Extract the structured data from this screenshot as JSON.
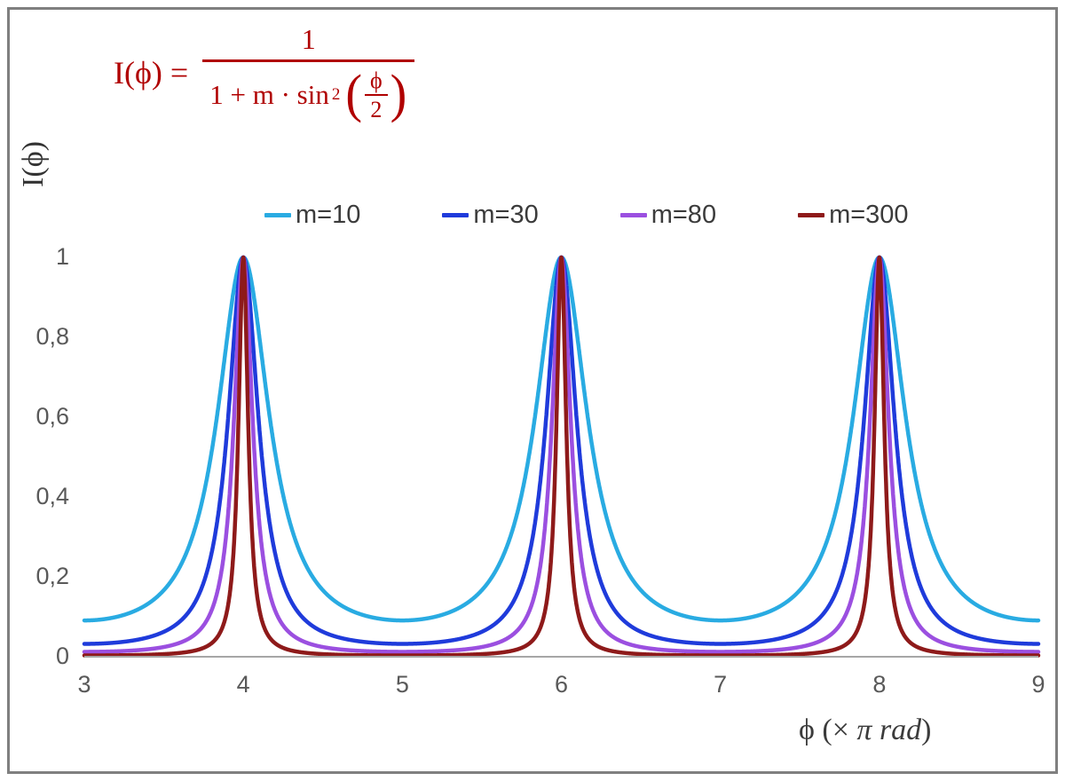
{
  "window": {
    "background": "#ffffff",
    "frame_border_color": "#808080"
  },
  "formula": {
    "color": "#b00000",
    "lhs": "I(ϕ) =",
    "numerator": "1",
    "den_prefix": "1 + m · sin",
    "den_exponent": "2",
    "open_paren": "(",
    "inner_numerator": "ϕ",
    "inner_denominator": "2",
    "close_paren": ")"
  },
  "chart_data": {
    "type": "line",
    "formula": "I(phi) = 1 / (1 + m * sin^2(phi/2)), phi plotted in units of pi rad",
    "x_range": [
      3,
      9
    ],
    "ylim": [
      0,
      1
    ],
    "x_tick_labels": [
      "3",
      "4",
      "5",
      "6",
      "7",
      "8",
      "9"
    ],
    "y_tick_labels": [
      "0",
      "0,2",
      "0,4",
      "0,6",
      "0,8",
      "1"
    ],
    "y_tick_values": [
      0,
      0.2,
      0.4,
      0.6,
      0.8,
      1
    ],
    "peaks_at_x": [
      4,
      6,
      8
    ],
    "peak_value": 1,
    "minima_values_by_series": [
      0.0909,
      0.0323,
      0.0123,
      0.0033
    ],
    "xlabel": "ϕ  (× π rad)",
    "xlabel_parts": {
      "prefix": "ϕ  (× ",
      "italic": "π rad",
      "suffix": ")"
    },
    "ylabel": "I(ϕ)",
    "grid": false,
    "legend_position": "top-center",
    "axis_color": "#a6a6a6",
    "series": [
      {
        "name": "m=10",
        "m": 10,
        "color": "#29abe2"
      },
      {
        "name": "m=30",
        "m": 30,
        "color": "#1f3bdb"
      },
      {
        "name": "m=80",
        "m": 80,
        "color": "#9b4fe0"
      },
      {
        "name": "m=300",
        "m": 300,
        "color": "#8e1a1a"
      }
    ]
  }
}
